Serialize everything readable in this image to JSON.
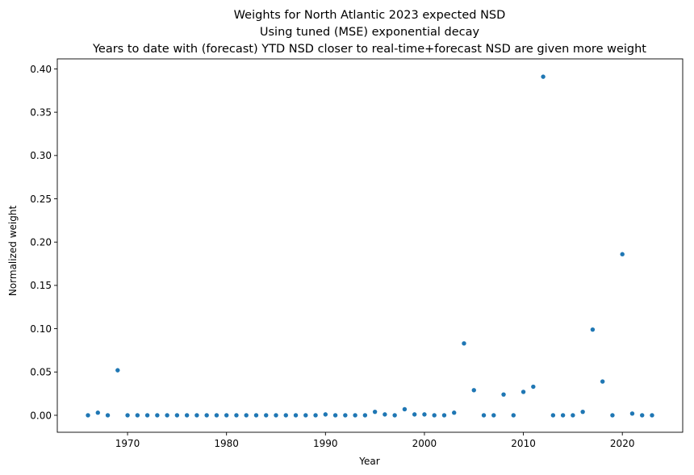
{
  "chart_data": {
    "type": "scatter",
    "title": "Weights for North Atlantic 2023 expected NSD",
    "subtitle": [
      "Using tuned (MSE) exponential decay",
      "Years to date with (forecast) YTD NSD closer to real-time+forecast NSD are given more weight"
    ],
    "xlabel": "Year",
    "ylabel": "Normalized weight",
    "xlim": [
      1962.9,
      2026.1
    ],
    "ylim": [
      -0.0196,
      0.4116
    ],
    "xticks": [
      1970,
      1980,
      1990,
      2000,
      2010,
      2020
    ],
    "yticks": [
      0.0,
      0.05,
      0.1,
      0.15,
      0.2,
      0.25,
      0.3,
      0.35,
      0.4
    ],
    "ytick_labels": [
      "0.00",
      "0.05",
      "0.10",
      "0.15",
      "0.20",
      "0.25",
      "0.30",
      "0.35",
      "0.40"
    ],
    "grid": false,
    "marker_color": "#1f77b4",
    "x": [
      1966,
      1967,
      1968,
      1969,
      1970,
      1971,
      1972,
      1973,
      1974,
      1975,
      1976,
      1977,
      1978,
      1979,
      1980,
      1981,
      1982,
      1983,
      1984,
      1985,
      1986,
      1987,
      1988,
      1989,
      1990,
      1991,
      1992,
      1993,
      1994,
      1995,
      1996,
      1997,
      1998,
      1999,
      2000,
      2001,
      2002,
      2003,
      2004,
      2005,
      2006,
      2007,
      2008,
      2009,
      2010,
      2011,
      2012,
      2013,
      2014,
      2015,
      2016,
      2017,
      2018,
      2019,
      2020,
      2021,
      2022,
      2023
    ],
    "y": [
      0.0,
      0.003,
      0.0,
      0.052,
      0.0,
      0.0,
      0.0,
      0.0,
      0.0,
      0.0,
      0.0,
      0.0,
      0.0,
      0.0,
      0.0,
      0.0,
      0.0,
      0.0,
      0.0,
      0.0,
      0.0,
      0.0,
      0.0,
      0.0,
      0.001,
      0.0,
      0.0,
      0.0,
      0.0,
      0.004,
      0.001,
      0.0,
      0.007,
      0.001,
      0.001,
      0.0,
      0.0,
      0.003,
      0.083,
      0.029,
      0.0,
      0.0,
      0.024,
      0.0,
      0.027,
      0.033,
      0.391,
      0.0,
      0.0,
      0.0,
      0.004,
      0.099,
      0.039,
      0.0,
      0.186,
      0.002,
      0.0,
      0.0
    ]
  }
}
